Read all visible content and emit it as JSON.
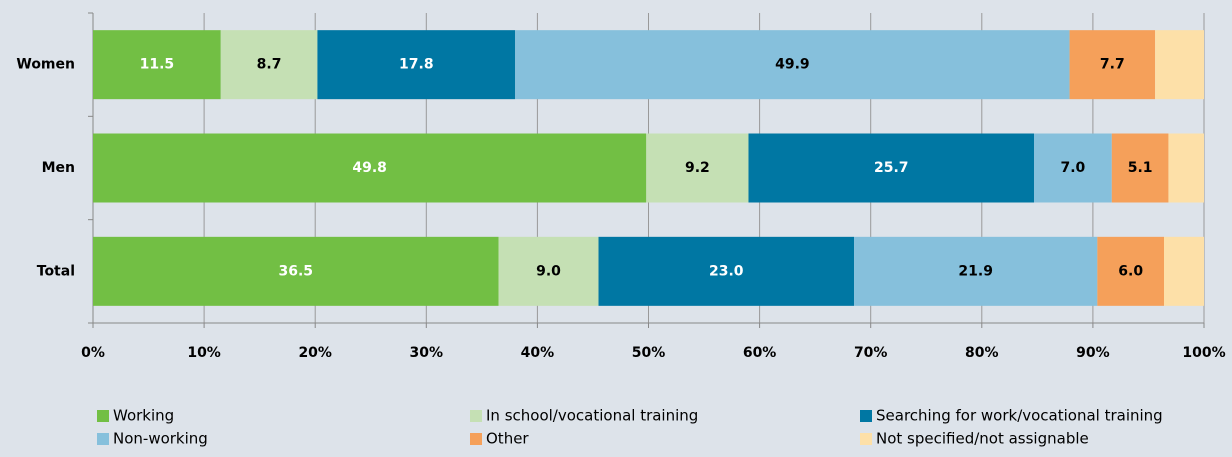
{
  "chart_data": {
    "type": "stacked_barh",
    "categories": [
      "Women",
      "Men",
      "Total"
    ],
    "series": [
      {
        "name": "Working",
        "color": "#72bf44",
        "label_color": "#ffffff",
        "values": [
          11.5,
          49.8,
          36.5
        ],
        "value_labels": [
          "11.5",
          "49.8",
          "36.5"
        ]
      },
      {
        "name": "In school/vocational training",
        "color": "#c5e0b4",
        "label_color": "#000000",
        "values": [
          8.7,
          9.2,
          9.0
        ],
        "value_labels": [
          "8.7",
          "9.2",
          "9.0"
        ]
      },
      {
        "name": "Searching for work/vocational training",
        "color": "#0077a3",
        "label_color": "#ffffff",
        "values": [
          17.8,
          25.7,
          23.0
        ],
        "value_labels": [
          "17.8",
          "25.7",
          "23.0"
        ]
      },
      {
        "name": "Non-working",
        "color": "#86c0dc",
        "label_color": "#000000",
        "values": [
          49.9,
          7.0,
          21.9
        ],
        "value_labels": [
          "49.9",
          "7.0",
          "21.9"
        ]
      },
      {
        "name": "Other",
        "color": "#f5a05a",
        "label_color": "#000000",
        "values": [
          7.7,
          5.1,
          6.0
        ],
        "value_labels": [
          "7.7",
          "5.1",
          "6.0"
        ]
      },
      {
        "name": "Not specified/not assignable",
        "color": "#fde0a8",
        "values": [
          4.4,
          3.2,
          3.6
        ]
      }
    ],
    "xlim": [
      0,
      100
    ],
    "xticks": [
      {
        "value": 0,
        "label": "0%"
      },
      {
        "value": 10,
        "label": "10%"
      },
      {
        "value": 20,
        "label": "20%"
      },
      {
        "value": 30,
        "label": "30%"
      },
      {
        "value": 40,
        "label": "40%"
      },
      {
        "value": 50,
        "label": "50%"
      },
      {
        "value": 60,
        "label": "60%"
      },
      {
        "value": 70,
        "label": "70%"
      },
      {
        "value": 80,
        "label": "80%"
      },
      {
        "value": 90,
        "label": "90%"
      },
      {
        "value": 100,
        "label": "100%"
      }
    ],
    "grid": true
  }
}
